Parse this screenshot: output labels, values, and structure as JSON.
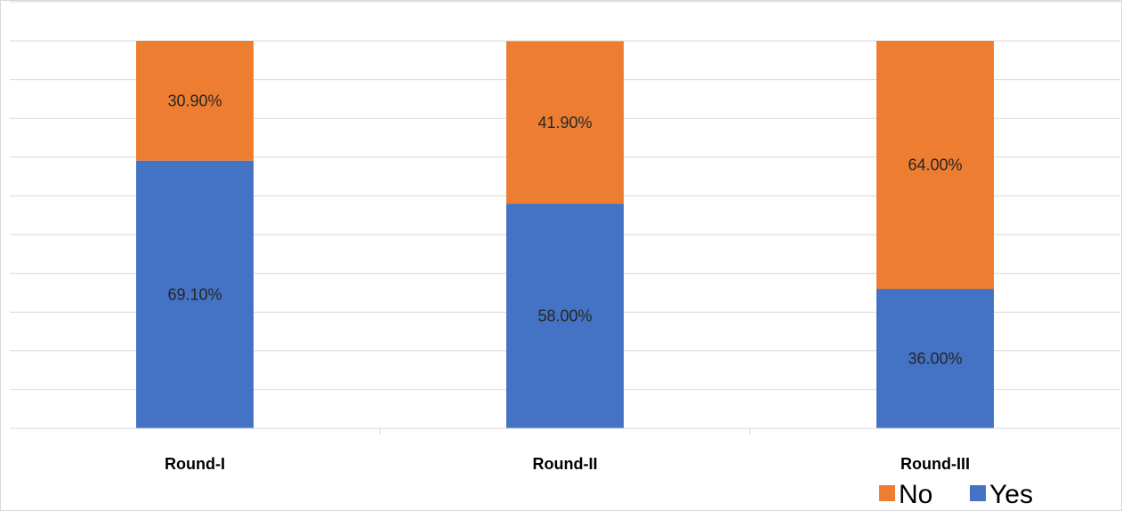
{
  "chart_data": {
    "type": "bar",
    "stacked": true,
    "normalized_percent": true,
    "categories": [
      "Round-I",
      "Round-II",
      "Round-III"
    ],
    "series": [
      {
        "name": "Yes",
        "color": "#4472c4",
        "values": [
          69.1,
          58.0,
          36.0
        ],
        "labels": [
          "69.10%",
          "58.00%",
          "36.00%"
        ]
      },
      {
        "name": "No",
        "color": "#ed7d31",
        "values": [
          30.9,
          41.9,
          64.0
        ],
        "labels": [
          "30.90%",
          "41.90%",
          "64.00%"
        ]
      }
    ],
    "ylim": [
      0,
      100
    ],
    "grid": true,
    "legend": [
      "No",
      "Yes"
    ],
    "legend_position": "bottom-right",
    "title": "",
    "xlabel": "",
    "ylabel": ""
  }
}
